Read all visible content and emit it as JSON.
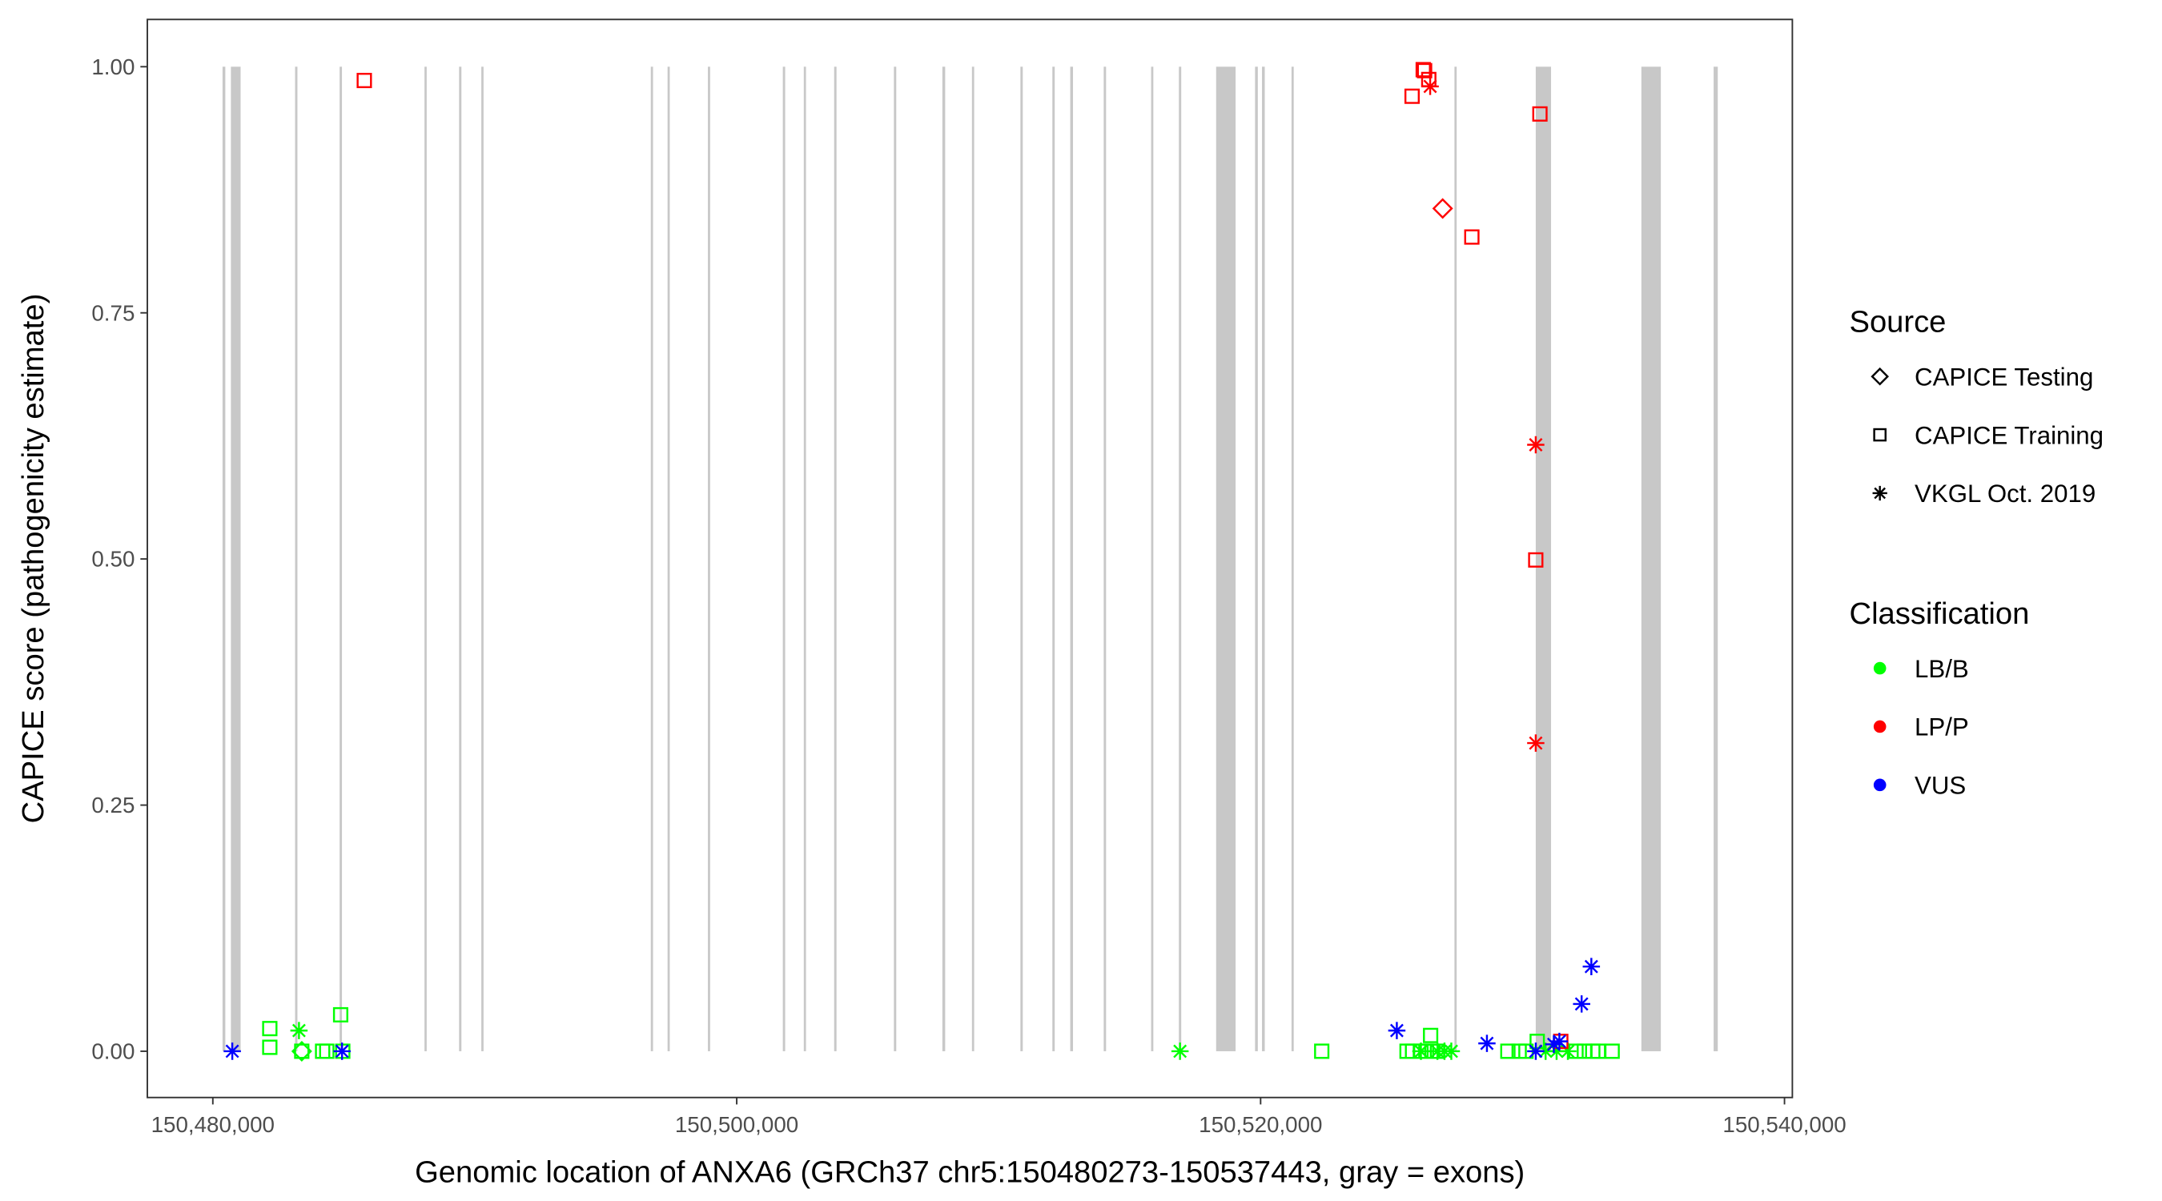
{
  "chart_data": {
    "type": "scatter",
    "title": "",
    "xlabel": "Genomic location of ANXA6 (GRCh37 chr5:150480273-150537443, gray = exons)",
    "ylabel": "CAPICE score (pathogenicity estimate)",
    "xlim": [
      150477500,
      150540300
    ],
    "ylim": [
      -0.047,
      1.048
    ],
    "xticks": [
      150480000,
      150500000,
      150520000,
      150540000
    ],
    "xtick_labels": [
      "150,480,000",
      "150,500,000",
      "150,520,000",
      "150,540,000"
    ],
    "yticks": [
      0,
      0.25,
      0.5,
      0.75,
      1.0
    ],
    "ytick_labels": [
      "0.00",
      "0.25",
      "0.50",
      "0.75",
      "1.00"
    ],
    "grid": false,
    "exon_color": "#c8c8c8",
    "exons": [
      [
        150480371,
        150480477
      ],
      [
        150480690,
        150481061
      ],
      [
        150483140,
        150483230
      ],
      [
        150484840,
        150484930
      ],
      [
        150488080,
        150488160
      ],
      [
        150489400,
        150489490
      ],
      [
        150490250,
        150490330
      ],
      [
        150496720,
        150496800
      ],
      [
        150497360,
        150497440
      ],
      [
        150498900,
        150498980
      ],
      [
        150501760,
        150501850
      ],
      [
        150502560,
        150502640
      ],
      [
        150503720,
        150503810
      ],
      [
        150506000,
        150506090
      ],
      [
        150507851,
        150507958
      ],
      [
        150508980,
        150509060
      ],
      [
        150510830,
        150510920
      ],
      [
        150512050,
        150512140
      ],
      [
        150512732,
        150512838
      ],
      [
        150514010,
        150514100
      ],
      [
        150515820,
        150515900
      ],
      [
        150516880,
        150516970
      ],
      [
        150518302,
        150519045
      ],
      [
        150519788,
        150519894
      ],
      [
        150520053,
        150520159
      ],
      [
        150521180,
        150521260
      ],
      [
        150527400,
        150527450
      ],
      [
        150530504,
        150531088
      ],
      [
        150534536,
        150535279
      ],
      [
        150537294,
        150537453
      ]
    ],
    "legend": {
      "placement": "right",
      "source_title": "Source",
      "source": [
        {
          "label": "CAPICE Testing",
          "shape": "diamond"
        },
        {
          "label": "CAPICE Training",
          "shape": "square"
        },
        {
          "label": "VKGL Oct. 2019",
          "shape": "star"
        }
      ],
      "class_title": "Classification",
      "classes": [
        {
          "label": "LB/B",
          "color": "#00ff00"
        },
        {
          "label": "LP/P",
          "color": "#ff0000"
        },
        {
          "label": "VUS",
          "color": "#0000ff"
        }
      ]
    },
    "points": [
      {
        "x": 150480743,
        "y": 0.0,
        "source": "star",
        "cls": "VUS"
      },
      {
        "x": 150482175,
        "y": 0.023,
        "source": "square",
        "cls": "LB/B"
      },
      {
        "x": 150482175,
        "y": 0.004,
        "source": "square",
        "cls": "LB/B"
      },
      {
        "x": 150483289,
        "y": 0.021,
        "source": "star",
        "cls": "LB/B"
      },
      {
        "x": 150483395,
        "y": 0.0,
        "source": "diamond",
        "cls": "LB/B"
      },
      {
        "x": 150483395,
        "y": 0.0,
        "source": "square",
        "cls": "LB/B"
      },
      {
        "x": 150484191,
        "y": 0.0,
        "source": "square",
        "cls": "LB/B"
      },
      {
        "x": 150484350,
        "y": 0.0,
        "source": "square",
        "cls": "LB/B"
      },
      {
        "x": 150484880,
        "y": 0.037,
        "source": "square",
        "cls": "LB/B"
      },
      {
        "x": 150484960,
        "y": 0.0,
        "source": "square",
        "cls": "LB/B"
      },
      {
        "x": 150484933,
        "y": 0.0,
        "source": "star",
        "cls": "VUS"
      },
      {
        "x": 150485783,
        "y": 0.986,
        "source": "square",
        "cls": "LP/P"
      },
      {
        "x": 150516923,
        "y": 0.0,
        "source": "star",
        "cls": "LB/B"
      },
      {
        "x": 150522334,
        "y": 0.0,
        "source": "square",
        "cls": "LB/B"
      },
      {
        "x": 150525590,
        "y": 0.0,
        "source": "square",
        "cls": "LB/B"
      },
      {
        "x": 150525800,
        "y": 0.0,
        "source": "square",
        "cls": "LB/B"
      },
      {
        "x": 150526120,
        "y": 0.0,
        "source": "square",
        "cls": "LB/B"
      },
      {
        "x": 150526330,
        "y": 0.0,
        "source": "square",
        "cls": "LB/B"
      },
      {
        "x": 150526540,
        "y": 0.0,
        "source": "square",
        "cls": "LB/B"
      },
      {
        "x": 150526750,
        "y": 0.0,
        "source": "square",
        "cls": "LB/B"
      },
      {
        "x": 150526490,
        "y": 0.016,
        "source": "square",
        "cls": "LB/B"
      },
      {
        "x": 150526120,
        "y": 0.0,
        "source": "star",
        "cls": "LB/B"
      },
      {
        "x": 150526750,
        "y": 0.0,
        "source": "star",
        "cls": "LB/B"
      },
      {
        "x": 150527020,
        "y": 0.0,
        "source": "star",
        "cls": "LB/B"
      },
      {
        "x": 150527280,
        "y": 0.0,
        "source": "star",
        "cls": "LB/B"
      },
      {
        "x": 150529440,
        "y": 0.0,
        "source": "square",
        "cls": "LB/B"
      },
      {
        "x": 150529870,
        "y": 0.0,
        "source": "square",
        "cls": "LB/B"
      },
      {
        "x": 150530130,
        "y": 0.0,
        "source": "square",
        "cls": "LB/B"
      },
      {
        "x": 150530560,
        "y": 0.01,
        "source": "square",
        "cls": "LB/B"
      },
      {
        "x": 150530880,
        "y": 0.0,
        "source": "star",
        "cls": "LB/B"
      },
      {
        "x": 150531300,
        "y": 0.0,
        "source": "star",
        "cls": "LB/B"
      },
      {
        "x": 150531730,
        "y": 0.0,
        "source": "star",
        "cls": "LB/B"
      },
      {
        "x": 150532040,
        "y": 0.0,
        "source": "square",
        "cls": "LB/B"
      },
      {
        "x": 150532360,
        "y": 0.0,
        "source": "square",
        "cls": "LB/B"
      },
      {
        "x": 150532680,
        "y": 0.0,
        "source": "square",
        "cls": "LB/B"
      },
      {
        "x": 150532890,
        "y": 0.0,
        "source": "square",
        "cls": "LB/B"
      },
      {
        "x": 150533420,
        "y": 0.0,
        "source": "square",
        "cls": "LB/B"
      },
      {
        "x": 150526208,
        "y": 0.997,
        "source": "square",
        "cls": "LP/P"
      },
      {
        "x": 150526260,
        "y": 0.996,
        "source": "square",
        "cls": "LP/P"
      },
      {
        "x": 150526420,
        "y": 0.987,
        "source": "square",
        "cls": "LP/P"
      },
      {
        "x": 150526473,
        "y": 0.98,
        "source": "star",
        "cls": "LP/P"
      },
      {
        "x": 150525783,
        "y": 0.97,
        "source": "square",
        "cls": "LP/P"
      },
      {
        "x": 150526950,
        "y": 0.856,
        "source": "diamond",
        "cls": "LP/P"
      },
      {
        "x": 150528064,
        "y": 0.827,
        "source": "square",
        "cls": "LP/P"
      },
      {
        "x": 150530663,
        "y": 0.952,
        "source": "square",
        "cls": "LP/P"
      },
      {
        "x": 150530504,
        "y": 0.616,
        "source": "star",
        "cls": "LP/P"
      },
      {
        "x": 150530504,
        "y": 0.499,
        "source": "square",
        "cls": "LP/P"
      },
      {
        "x": 150530504,
        "y": 0.313,
        "source": "star",
        "cls": "LP/P"
      },
      {
        "x": 150531459,
        "y": 0.01,
        "source": "square",
        "cls": "LP/P"
      },
      {
        "x": 150525200,
        "y": 0.021,
        "source": "star",
        "cls": "VUS"
      },
      {
        "x": 150528640,
        "y": 0.008,
        "source": "star",
        "cls": "VUS"
      },
      {
        "x": 150530504,
        "y": 0.0,
        "source": "star",
        "cls": "VUS"
      },
      {
        "x": 150531193,
        "y": 0.007,
        "source": "star",
        "cls": "VUS"
      },
      {
        "x": 150531406,
        "y": 0.01,
        "source": "star",
        "cls": "VUS"
      },
      {
        "x": 150532255,
        "y": 0.048,
        "source": "star",
        "cls": "VUS"
      },
      {
        "x": 150532626,
        "y": 0.086,
        "source": "star",
        "cls": "VUS"
      }
    ]
  }
}
